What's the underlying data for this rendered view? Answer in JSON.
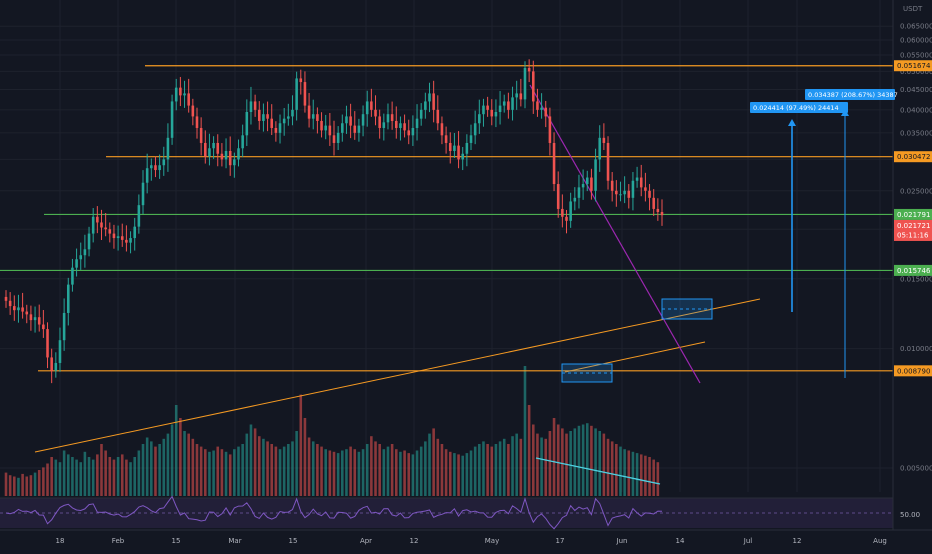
{
  "chart_data": {
    "type": "candlestick",
    "quote_currency": "USDT",
    "y_axis_scale": "log",
    "y_axis_ticks": [
      "0.065000",
      "0.060000",
      "0.055000",
      "0.050000",
      "0.045000",
      "0.040000",
      "0.035000",
      "0.030000",
      "0.025000",
      "0.020000",
      "0.015000",
      "0.010000",
      "0.005000"
    ],
    "x_axis_ticks": [
      "18",
      "Feb",
      "15",
      "Mar",
      "15",
      "Apr",
      "12",
      "May",
      "17",
      "Jun",
      "14",
      "Jul",
      "12",
      "Aug"
    ],
    "price_levels": [
      {
        "label": "0.051674",
        "value": 0.051674,
        "color": "#f59a23"
      },
      {
        "label": "0.030472",
        "value": 0.030472,
        "color": "#f59a23"
      },
      {
        "label": "0.021791",
        "value": 0.021791,
        "color": "#4caf50"
      },
      {
        "label": "0.015746",
        "value": 0.015746,
        "color": "#4caf50"
      },
      {
        "label": "0.008790",
        "value": 0.00879,
        "color": "#f59a23"
      }
    ],
    "current_price": {
      "label": "0.021721",
      "countdown": "05:11:16",
      "color": "#ef5350"
    },
    "measure_labels": [
      {
        "text": "0.024414 (97.49%) 24414"
      },
      {
        "text": "0.034387 (208.67%) 34387"
      }
    ],
    "rsi_level_label": "50.00",
    "series": [
      {
        "name": "",
        "open": [
          0.0135,
          0.0132,
          0.0128,
          0.0125,
          0.0127,
          0.0124,
          0.0122,
          0.0118,
          0.012,
          0.0115,
          0.0112,
          0.0095,
          0.0088,
          0.0092,
          0.0105,
          0.0123,
          0.0145,
          0.016,
          0.0168,
          0.0172,
          0.0178,
          0.0195,
          0.0215,
          0.0208,
          0.0202,
          0.02,
          0.0195,
          0.019,
          0.0192,
          0.0188,
          0.0185,
          0.019,
          0.0203,
          0.023,
          0.0262,
          0.0285,
          0.029,
          0.0282,
          0.029,
          0.03,
          0.034,
          0.042,
          0.0455,
          0.0435,
          0.044,
          0.041,
          0.0385,
          0.036,
          0.033,
          0.0305,
          0.032,
          0.033,
          0.031,
          0.03,
          0.0315,
          0.029,
          0.03,
          0.032,
          0.0345,
          0.0395,
          0.042,
          0.04,
          0.0375,
          0.039,
          0.038,
          0.036,
          0.035,
          0.037,
          0.038,
          0.0385,
          0.04,
          0.048,
          0.047,
          0.041,
          0.038,
          0.039,
          0.0375,
          0.0355,
          0.0365,
          0.0345,
          0.033,
          0.035,
          0.037,
          0.0385,
          0.0365,
          0.035,
          0.0365,
          0.039,
          0.042,
          0.04,
          0.0385,
          0.036,
          0.0372,
          0.039,
          0.0375,
          0.036,
          0.037,
          0.0355,
          0.0345,
          0.036,
          0.038,
          0.04,
          0.042,
          0.044,
          0.04,
          0.037,
          0.0345,
          0.033,
          0.0315,
          0.0325,
          0.03,
          0.031,
          0.033,
          0.0345,
          0.037,
          0.039,
          0.041,
          0.04,
          0.0385,
          0.0395,
          0.041,
          0.042,
          0.04,
          0.043,
          0.044,
          0.0425,
          0.051,
          0.05,
          0.042,
          0.04,
          0.0405,
          0.0385,
          0.033,
          0.026,
          0.0225,
          0.0215,
          0.021,
          0.0235,
          0.024,
          0.0255,
          0.026,
          0.027,
          0.025,
          0.03,
          0.034,
          0.033,
          0.0265,
          0.025,
          0.0245,
          0.0245,
          0.025,
          0.024,
          0.0265,
          0.027,
          0.0255,
          0.025,
          0.024,
          0.0225,
          0.0221
        ]
      },
      {
        "name": "",
        "close": [
          0.0132,
          0.0128,
          0.0125,
          0.0127,
          0.0124,
          0.0122,
          0.0118,
          0.012,
          0.0115,
          0.0112,
          0.0095,
          0.0088,
          0.0092,
          0.0105,
          0.0123,
          0.0145,
          0.016,
          0.0168,
          0.0172,
          0.0178,
          0.0195,
          0.0215,
          0.0208,
          0.0202,
          0.02,
          0.0195,
          0.019,
          0.0192,
          0.0188,
          0.0185,
          0.019,
          0.0203,
          0.023,
          0.0262,
          0.0285,
          0.029,
          0.0282,
          0.029,
          0.03,
          0.034,
          0.042,
          0.0455,
          0.0435,
          0.044,
          0.041,
          0.0385,
          0.036,
          0.033,
          0.0305,
          0.032,
          0.033,
          0.031,
          0.03,
          0.0315,
          0.029,
          0.03,
          0.032,
          0.0345,
          0.0395,
          0.042,
          0.04,
          0.0375,
          0.039,
          0.038,
          0.036,
          0.035,
          0.037,
          0.038,
          0.0385,
          0.04,
          0.048,
          0.047,
          0.041,
          0.038,
          0.039,
          0.0375,
          0.0355,
          0.0365,
          0.0345,
          0.033,
          0.035,
          0.037,
          0.0385,
          0.0365,
          0.035,
          0.0365,
          0.039,
          0.042,
          0.04,
          0.0385,
          0.036,
          0.0372,
          0.039,
          0.0375,
          0.036,
          0.037,
          0.0355,
          0.0345,
          0.036,
          0.038,
          0.04,
          0.042,
          0.044,
          0.04,
          0.037,
          0.0345,
          0.033,
          0.0315,
          0.0325,
          0.03,
          0.031,
          0.033,
          0.0345,
          0.037,
          0.039,
          0.041,
          0.04,
          0.0385,
          0.0395,
          0.041,
          0.042,
          0.04,
          0.043,
          0.044,
          0.0425,
          0.051,
          0.05,
          0.042,
          0.04,
          0.0405,
          0.0385,
          0.033,
          0.026,
          0.0225,
          0.0215,
          0.021,
          0.0235,
          0.024,
          0.0255,
          0.026,
          0.027,
          0.025,
          0.03,
          0.034,
          0.033,
          0.0265,
          0.025,
          0.0245,
          0.0245,
          0.025,
          0.024,
          0.0265,
          0.027,
          0.0255,
          0.025,
          0.024,
          0.0225,
          0.0221,
          0.0217
        ]
      }
    ],
    "volume": [
      18,
      16,
      15,
      14,
      17,
      15,
      16,
      18,
      20,
      22,
      25,
      30,
      28,
      26,
      35,
      32,
      30,
      28,
      26,
      34,
      30,
      28,
      32,
      40,
      35,
      30,
      28,
      30,
      32,
      28,
      26,
      30,
      35,
      40,
      45,
      42,
      38,
      40,
      44,
      48,
      55,
      70,
      60,
      50,
      48,
      44,
      40,
      38,
      36,
      34,
      35,
      38,
      36,
      34,
      32,
      36,
      38,
      40,
      48,
      55,
      52,
      46,
      44,
      42,
      40,
      38,
      36,
      38,
      40,
      42,
      50,
      78,
      60,
      45,
      42,
      40,
      38,
      36,
      35,
      34,
      33,
      35,
      36,
      38,
      36,
      34,
      36,
      40,
      46,
      42,
      40,
      36,
      38,
      40,
      36,
      34,
      35,
      33,
      32,
      35,
      38,
      42,
      48,
      52,
      44,
      40,
      36,
      34,
      33,
      32,
      31,
      33,
      35,
      38,
      40,
      42,
      40,
      38,
      40,
      42,
      44,
      40,
      46,
      48,
      44,
      100,
      70,
      55,
      48,
      45,
      44,
      50,
      60,
      55,
      52,
      48,
      50,
      52,
      54,
      55,
      56,
      54,
      52,
      50,
      48,
      44,
      42,
      40,
      38,
      36,
      35,
      34,
      33,
      32,
      31,
      30,
      28,
      26
    ]
  }
}
